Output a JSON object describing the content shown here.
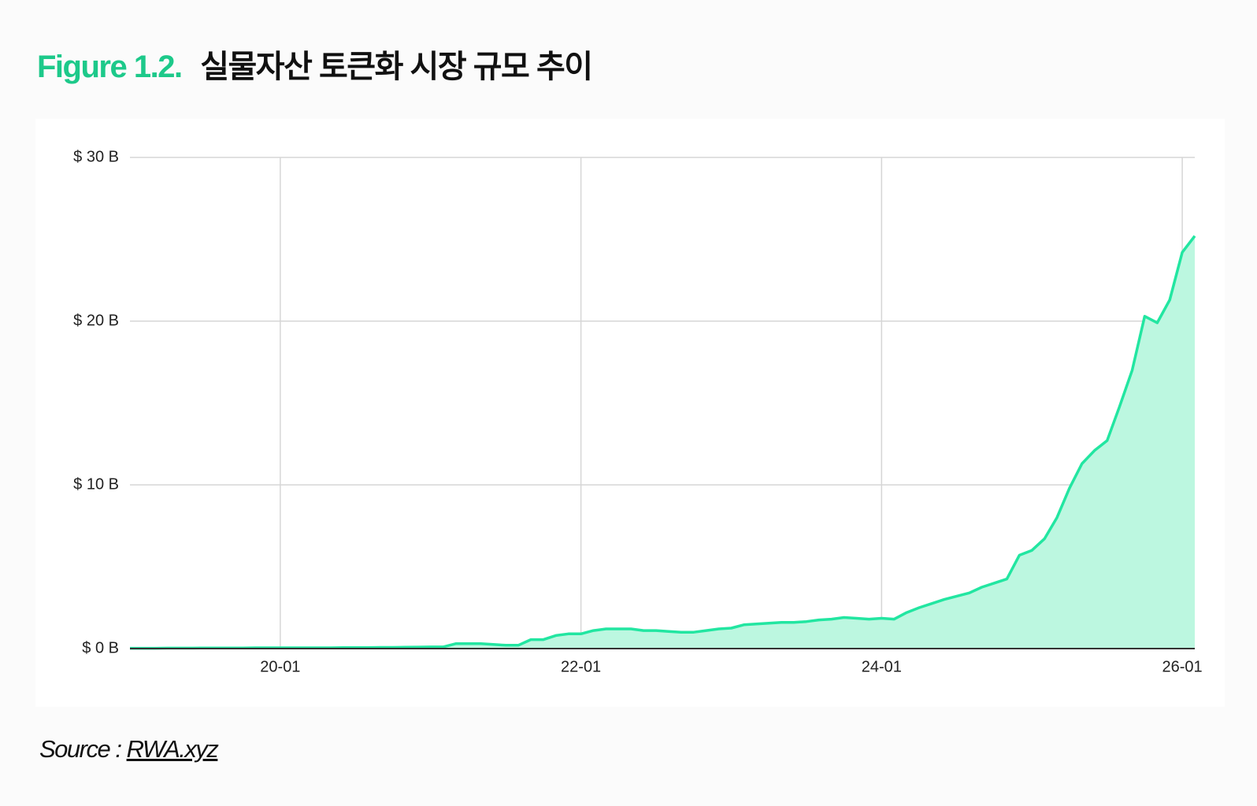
{
  "chart_data": {
    "type": "area",
    "figure_label": "Figure 1.2.",
    "title": "실물자산 토큰화 시장 규모 추이",
    "categories": [
      null,
      null,
      null,
      null,
      null,
      null,
      null,
      null,
      null,
      null,
      null,
      null,
      "20-01",
      null,
      null,
      null,
      null,
      null,
      null,
      null,
      null,
      null,
      null,
      null,
      null,
      null,
      null,
      null,
      null,
      null,
      null,
      null,
      null,
      null,
      null,
      null,
      "22-01",
      null,
      null,
      null,
      null,
      null,
      null,
      null,
      null,
      null,
      null,
      null,
      null,
      null,
      null,
      null,
      null,
      null,
      null,
      null,
      null,
      null,
      null,
      null,
      "24-01",
      null,
      null,
      null,
      null,
      null,
      null,
      null,
      null,
      null,
      null,
      null,
      null,
      null,
      null,
      null,
      null,
      null,
      null,
      null,
      null,
      null,
      null,
      null,
      "26-01",
      null
    ],
    "series": [
      {
        "color": "#22e6a1",
        "fill": "#bcf7e0",
        "values": [
          0.02,
          0.02,
          0.02,
          0.03,
          0.03,
          0.03,
          0.04,
          0.04,
          0.04,
          0.04,
          0.05,
          0.05,
          0.05,
          0.05,
          0.05,
          0.05,
          0.05,
          0.06,
          0.06,
          0.06,
          0.07,
          0.07,
          0.08,
          0.09,
          0.1,
          0.1,
          0.3,
          0.3,
          0.3,
          0.25,
          0.2,
          0.2,
          0.55,
          0.55,
          0.8,
          0.9,
          0.9,
          1.1,
          1.2,
          1.2,
          1.2,
          1.1,
          1.1,
          1.05,
          1.0,
          1.0,
          1.1,
          1.2,
          1.25,
          1.45,
          1.5,
          1.55,
          1.6,
          1.6,
          1.65,
          1.75,
          1.8,
          1.9,
          1.85,
          1.8,
          1.85,
          1.8,
          2.2,
          2.5,
          2.75,
          3.0,
          3.2,
          3.4,
          3.75,
          4.0,
          4.25,
          5.7,
          6.0,
          6.7,
          8.0,
          9.8,
          11.3,
          12.1,
          12.7,
          14.8,
          17.0,
          20.3,
          19.9,
          21.3,
          24.2,
          25.2
        ]
      }
    ],
    "ylim": [
      0,
      30
    ],
    "yticks": [
      {
        "value": 0,
        "label": "$ 0 B"
      },
      {
        "value": 10,
        "label": "$ 10 B"
      },
      {
        "value": 20,
        "label": "$ 20 B"
      },
      {
        "value": 30,
        "label": "$ 30 B"
      }
    ],
    "grid": true
  },
  "source": {
    "label": "Source : ",
    "link": "RWA.xyz"
  }
}
